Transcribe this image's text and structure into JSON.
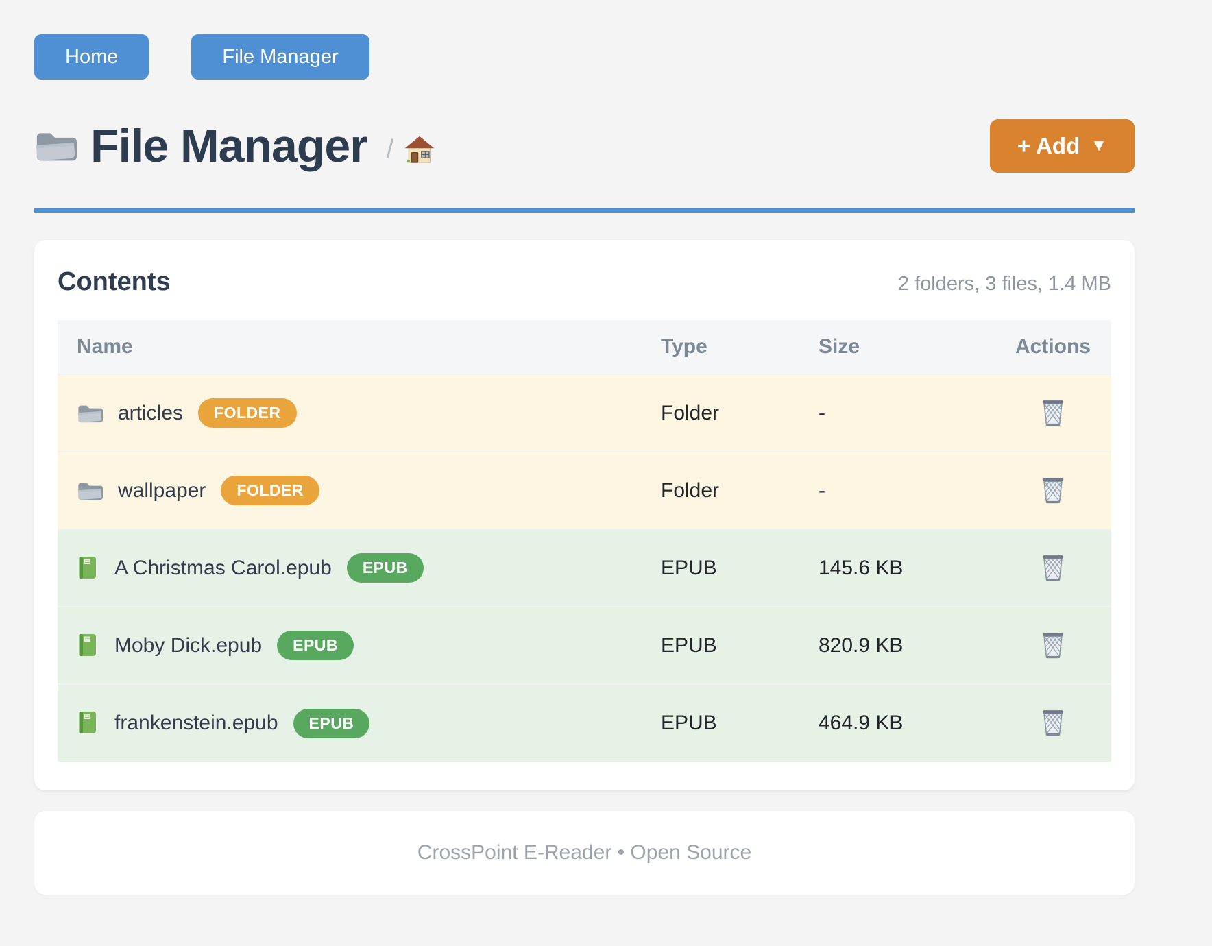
{
  "nav": {
    "buttons": [
      {
        "label": "Home"
      },
      {
        "label": "File Manager"
      }
    ]
  },
  "header": {
    "title": "File Manager",
    "title_icon": "folder-icon",
    "breadcrumb": {
      "separator": "/",
      "home_icon": "home-icon"
    },
    "add_button": {
      "label": "+ Add",
      "caret": "▼"
    }
  },
  "contents_card": {
    "title": "Contents",
    "summary": "2 folders, 3 files, 1.4 MB",
    "table": {
      "columns": [
        "Name",
        "Type",
        "Size",
        "Actions"
      ],
      "action_icon": "trash-icon",
      "rows": [
        {
          "icon": "folder-icon",
          "name": "articles",
          "badge": "FOLDER",
          "kind": "folder",
          "type": "Folder",
          "size": "-"
        },
        {
          "icon": "folder-icon",
          "name": "wallpaper",
          "badge": "FOLDER",
          "kind": "folder",
          "type": "Folder",
          "size": "-"
        },
        {
          "icon": "book-icon",
          "name": "A Christmas Carol.epub",
          "badge": "EPUB",
          "kind": "epub",
          "type": "EPUB",
          "size": "145.6 KB"
        },
        {
          "icon": "book-icon",
          "name": "Moby Dick.epub",
          "badge": "EPUB",
          "kind": "epub",
          "type": "EPUB",
          "size": "820.9 KB"
        },
        {
          "icon": "book-icon",
          "name": "frankenstein.epub",
          "badge": "EPUB",
          "kind": "epub",
          "type": "EPUB",
          "size": "464.9 KB"
        }
      ]
    }
  },
  "footer": {
    "text": "CrossPoint E-Reader • Open Source"
  },
  "colors": {
    "primary_blue": "#4e90d3",
    "divider_blue": "#4a90d2",
    "accent_orange": "#d9832e",
    "badge_folder": "#e9a43c",
    "badge_epub": "#58a85f",
    "row_folder_bg": "#fdf6e3",
    "row_epub_bg": "#e6f2e6",
    "page_bg": "#f4f4f5"
  }
}
